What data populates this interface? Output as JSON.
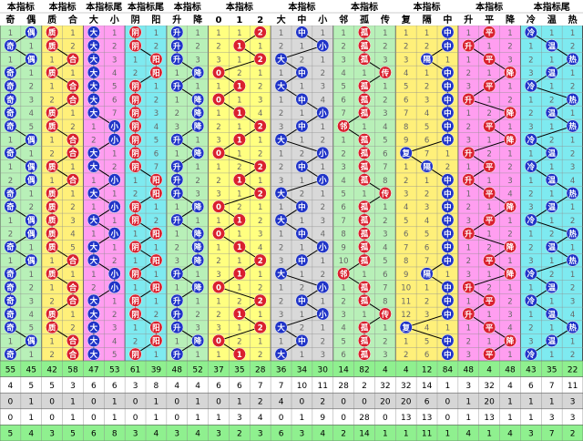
{
  "chart_data": {
    "type": "table",
    "groups": [
      {
        "title": "本指标",
        "columns": [
          "奇",
          "偶"
        ],
        "bg": "#b8f0b8",
        "mark": "#1f33c8",
        "pattern": "cycle",
        "period": 3
      },
      {
        "title": "本指标",
        "columns": [
          "质",
          "合"
        ],
        "bg": "#fff07a",
        "mark": "#d9202e",
        "pattern": "cycle",
        "period": 3
      },
      {
        "title": "本指标尾",
        "columns": [
          "大",
          "小"
        ],
        "bg": "#ff9ef0",
        "mark": "#1f33c8",
        "pattern": "cycle",
        "period": 4
      },
      {
        "title": "本指标尾",
        "columns": [
          "阴",
          "阳"
        ],
        "bg": "#7eeaf0",
        "mark": "#d9202e",
        "pattern": "cycle",
        "period": 4
      },
      {
        "title": "本指标",
        "columns": [
          "升",
          "降"
        ],
        "bg": "#b8f0b8",
        "mark": "#1f33c8",
        "pattern": "cycle",
        "period": 2
      },
      {
        "title": "本指标",
        "columns": [
          "0",
          "1",
          "2"
        ],
        "bg": "#ffff80",
        "mark": "#d9202e",
        "pattern": "zigzag"
      },
      {
        "title": "本指标",
        "columns": [
          "大",
          "中",
          "小"
        ],
        "bg": "#d9d9d9",
        "mark": "#1f33c8",
        "pattern": "zigzag"
      },
      {
        "title": "本指标",
        "columns": [
          "邻",
          "孤",
          "传"
        ],
        "bg": "#b8f0b8",
        "mark": "#d9202e",
        "pattern": "mostly-middle"
      },
      {
        "title": "本指标",
        "columns": [
          "复",
          "隔",
          "中"
        ],
        "bg": "#fff07a",
        "mark": "#1f33c8",
        "pattern": "mostly-right"
      },
      {
        "title": "本指标",
        "columns": [
          "升",
          "平",
          "降"
        ],
        "bg": "#ff9ef0",
        "mark": "#d9202e",
        "pattern": "zigzag"
      },
      {
        "title": "本指标尾",
        "columns": [
          "冷",
          "温",
          "热"
        ],
        "bg": "#7eeaf0",
        "mark": "#1f33c8",
        "pattern": "zigzag"
      }
    ],
    "row_count": 25,
    "summary_rows": [
      [
        "55",
        "45",
        "42",
        "58",
        "47",
        "53",
        "61",
        "39",
        "48",
        "52",
        "37",
        "35",
        "28",
        "36",
        "34",
        "30",
        "14",
        "82",
        "4",
        "4",
        "12",
        "84",
        "48",
        "4",
        "48",
        "43",
        "35",
        "22"
      ],
      [
        "4",
        "5",
        "5",
        "3",
        "6",
        "6",
        "3",
        "8",
        "4",
        "4",
        "6",
        "6",
        "7",
        "7",
        "10",
        "11",
        "28",
        "2",
        "32",
        "32",
        "14",
        "1",
        "3",
        "32",
        "4",
        "6",
        "7",
        "11"
      ],
      [
        "0",
        "1",
        "0",
        "1",
        "0",
        "1",
        "0",
        "1",
        "0",
        "1",
        "0",
        "1",
        "2",
        "4",
        "0",
        "2",
        "0",
        "0",
        "20",
        "20",
        "6",
        "0",
        "1",
        "20",
        "1",
        "1",
        "1",
        "3"
      ],
      [
        "0",
        "1",
        "0",
        "1",
        "0",
        "1",
        "0",
        "1",
        "0",
        "1",
        "1",
        "3",
        "4",
        "0",
        "1",
        "9",
        "0",
        "28",
        "0",
        "13",
        "13",
        "0",
        "1",
        "13",
        "1",
        "1",
        "3",
        "3"
      ],
      [
        "5",
        "4",
        "3",
        "5",
        "6",
        "8",
        "3",
        "4",
        "3",
        "4",
        "3",
        "2",
        "3",
        "6",
        "3",
        "4",
        "2",
        "14",
        "1",
        "1",
        "11",
        "1",
        "4",
        "1",
        "4",
        "3",
        "7",
        "2"
      ]
    ],
    "summary_row_colors": [
      "#8ff08f",
      "#ffffff",
      "#d6d6d6",
      "#ffffff",
      "#8ff08f"
    ]
  }
}
